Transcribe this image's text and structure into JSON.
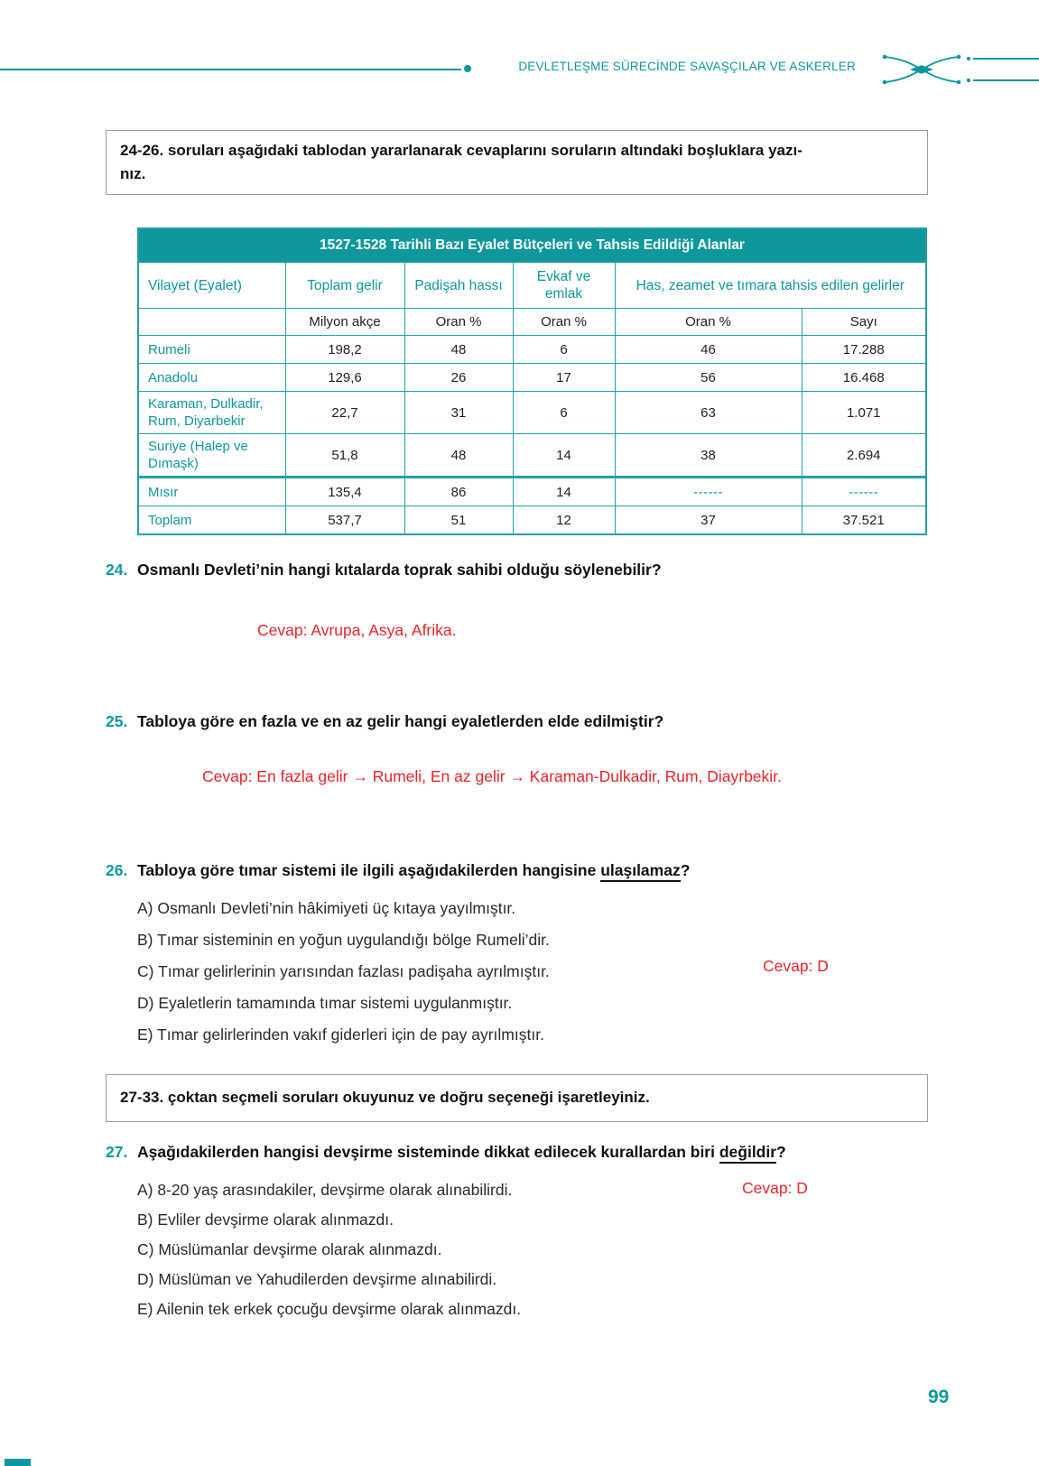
{
  "colors": {
    "teal": "#0E989D",
    "teal_border": "#23A0A5",
    "red": "#E8252B"
  },
  "header": {
    "chapter_title": "DEVLETLEŞME SÜRECİNDE SAVAŞÇILAR VE ASKERLER",
    "page_number": "99"
  },
  "instruction_box_1": {
    "line1": "24-26. soruları aşağıdaki tablodan yararlanarak cevaplarını soruların altındaki boşluklara yazı-",
    "line2": "nız."
  },
  "instruction_box_2": {
    "text": "27-33. çoktan seçmeli soruları okuyunuz ve doğru seçeneği işaretleyiniz."
  },
  "table": {
    "title": "1527-1528 Tarihli Bazı Eyalet Bütçeleri ve Tahsis Edildiği Alanlar",
    "columns": [
      "Vilayet (Eyalet)",
      "Toplam gelir",
      "Padişah hassı",
      "Evkaf ve emlak",
      "Has, zeamet ve tımara tahsis edilen gelirler"
    ],
    "units": [
      "",
      "Milyon akçe",
      "Oran %",
      "Oran %",
      "Oran %",
      "Sayı"
    ],
    "rows": [
      [
        "Rumeli",
        "198,2",
        "48",
        "6",
        "46",
        "17.288"
      ],
      [
        "Anadolu",
        "129,6",
        "26",
        "17",
        "56",
        "16.468"
      ],
      [
        "Karaman, Dulkadir, Rum, Diyarbekir",
        "22,7",
        "31",
        "6",
        "63",
        "1.071"
      ],
      [
        "Suriye (Halep ve Dımaşk)",
        "51,8",
        "48",
        "14",
        "38",
        "2.694"
      ],
      [
        "Mısır",
        "135,4",
        "86",
        "14",
        "------",
        "------"
      ],
      [
        "Toplam",
        "537,7",
        "51",
        "12",
        "37",
        "37.521"
      ]
    ]
  },
  "questions": {
    "q24": {
      "number": "24.",
      "text": "Osmanlı Devleti’nin hangi kıtalarda toprak sahibi olduğu söylenebilir?",
      "answer": "Cevap: Avrupa, Asya, Afrika."
    },
    "q25": {
      "number": "25.",
      "text": "Tabloya göre en fazla ve en az gelir hangi eyaletlerden elde edilmiştir?",
      "answer": "Cevap: En fazla gelir → Rumeli, En az gelir → Karaman-Dulkadir, Rum, Diayrbekir."
    },
    "q26": {
      "number": "26.",
      "text_before": "Tabloya göre tımar sistemi ile ilgili aşağıdakilerden hangisine ",
      "underlined": "ulaşılamaz",
      "text_after": "?",
      "options": [
        "A) Osmanlı Devleti’nin hâkimiyeti üç kıtaya yayılmıştır.",
        "B) Tımar sisteminin en yoğun uygulandığı bölge Rumeli’dir.",
        "C) Tımar gelirlerinin yarısından fazlası padişaha ayrılmıştır.",
        "D) Eyaletlerin tamamında tımar sistemi uygulanmıştır.",
        "E) Tımar gelirlerinden vakıf giderleri için de pay ayrılmıştır."
      ],
      "answer": "Cevap: D"
    },
    "q27": {
      "number": "27.",
      "text_before": "Aşağıdakilerden hangisi devşirme sisteminde dikkat edilecek kurallardan biri ",
      "underlined": "değildir",
      "text_after": "?",
      "options": [
        "A) 8-20 yaş arasındakiler, devşirme olarak alınabilirdi.",
        "B) Evliler devşirme olarak alınmazdı.",
        "C) Müslümanlar devşirme olarak alınmazdı.",
        "D) Müslüman ve Yahudilerden devşirme alınabilirdi.",
        "E) Ailenin tek erkek çocuğu devşirme olarak alınmazdı."
      ],
      "answer": "Cevap: D"
    }
  }
}
